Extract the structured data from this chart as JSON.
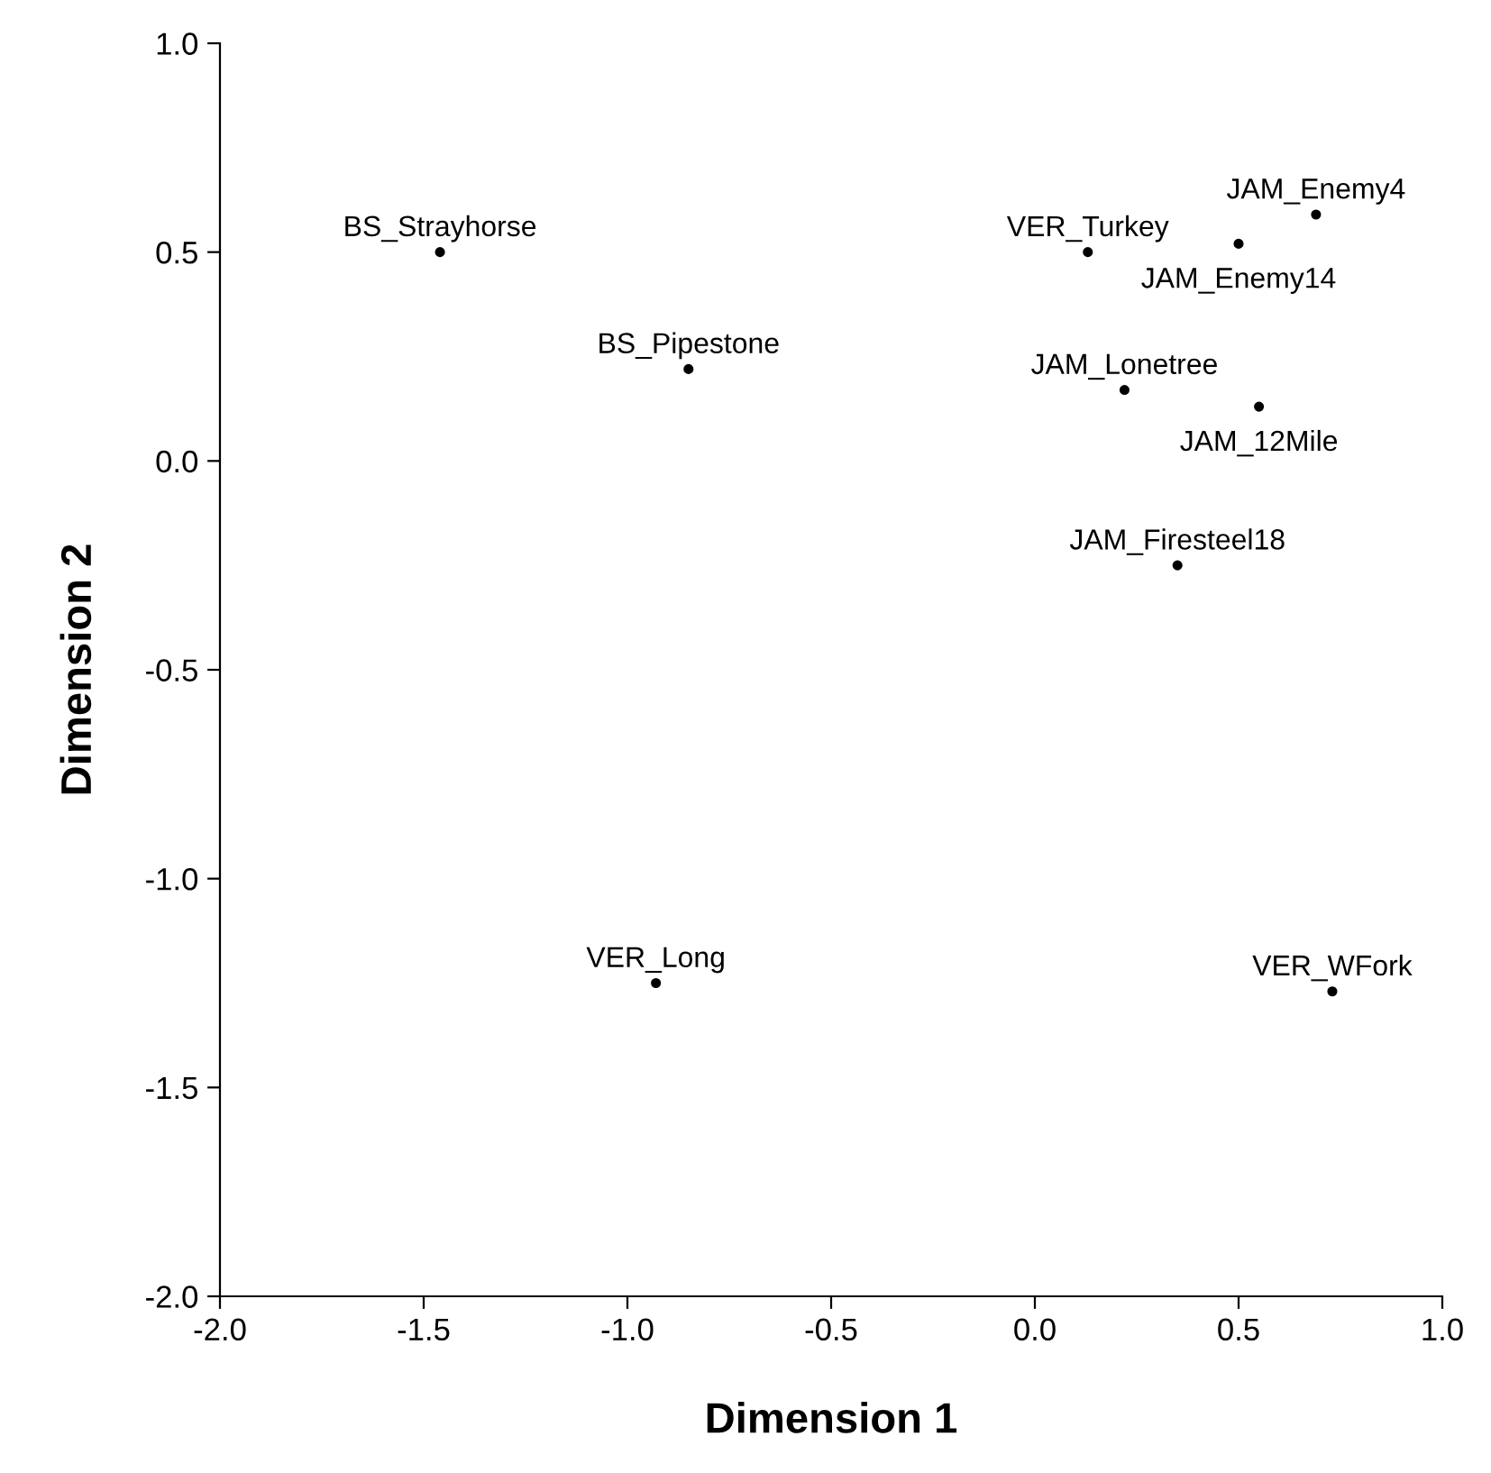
{
  "chart_data": {
    "type": "scatter",
    "xlabel": "Dimension 1",
    "ylabel": "Dimension 2",
    "x": [
      -1.46,
      -0.85,
      0.13,
      0.69,
      0.5,
      0.22,
      0.55,
      0.35,
      -0.93,
      0.73
    ],
    "values": [
      0.5,
      0.22,
      0.5,
      0.59,
      0.52,
      0.17,
      0.13,
      -0.25,
      -1.25,
      -1.27
    ],
    "annotations": [
      {
        "text": "BS_Strayhorse",
        "x": -1.46,
        "y": 0.5
      },
      {
        "text": "BS_Pipestone",
        "x": -0.85,
        "y": 0.22
      },
      {
        "text": "VER_Turkey",
        "x": 0.13,
        "y": 0.5
      },
      {
        "text": "JAM_Enemy4",
        "x": 0.69,
        "y": 0.59
      },
      {
        "text": "JAM_Enemy14",
        "x": 0.5,
        "y": 0.52
      },
      {
        "text": "JAM_Lonetree",
        "x": 0.22,
        "y": 0.17
      },
      {
        "text": "JAM_12Mile",
        "x": 0.55,
        "y": 0.13
      },
      {
        "text": "JAM_Firesteel18",
        "x": 0.35,
        "y": -0.25
      },
      {
        "text": "VER_Long",
        "x": -0.93,
        "y": -1.25
      },
      {
        "text": "VER_WFork",
        "x": 0.73,
        "y": -1.27
      }
    ],
    "marker": "circle",
    "color": "#000000",
    "xlim": [
      -2.0,
      1.0
    ],
    "ylim": [
      -2.0,
      1.0
    ],
    "xticks": [
      {
        "value": -2.0,
        "label": "-2.0"
      },
      {
        "value": -1.5,
        "label": "-1.5"
      },
      {
        "value": -1.0,
        "label": "-1.0"
      },
      {
        "value": -0.5,
        "label": "-0.5"
      },
      {
        "value": 0.0,
        "label": "0.0"
      },
      {
        "value": 0.5,
        "label": "0.5"
      },
      {
        "value": 1.0,
        "label": "1.0"
      }
    ],
    "yticks": [
      {
        "value": -2.0,
        "label": "-2.0"
      },
      {
        "value": -1.5,
        "label": "-1.5"
      },
      {
        "value": -1.0,
        "label": "-1.0"
      },
      {
        "value": -0.5,
        "label": "-0.5"
      },
      {
        "value": 0.0,
        "label": "0.0"
      },
      {
        "value": 0.5,
        "label": "0.5"
      },
      {
        "value": 1.0,
        "label": "1.0"
      }
    ],
    "grid": false,
    "legend": false
  }
}
